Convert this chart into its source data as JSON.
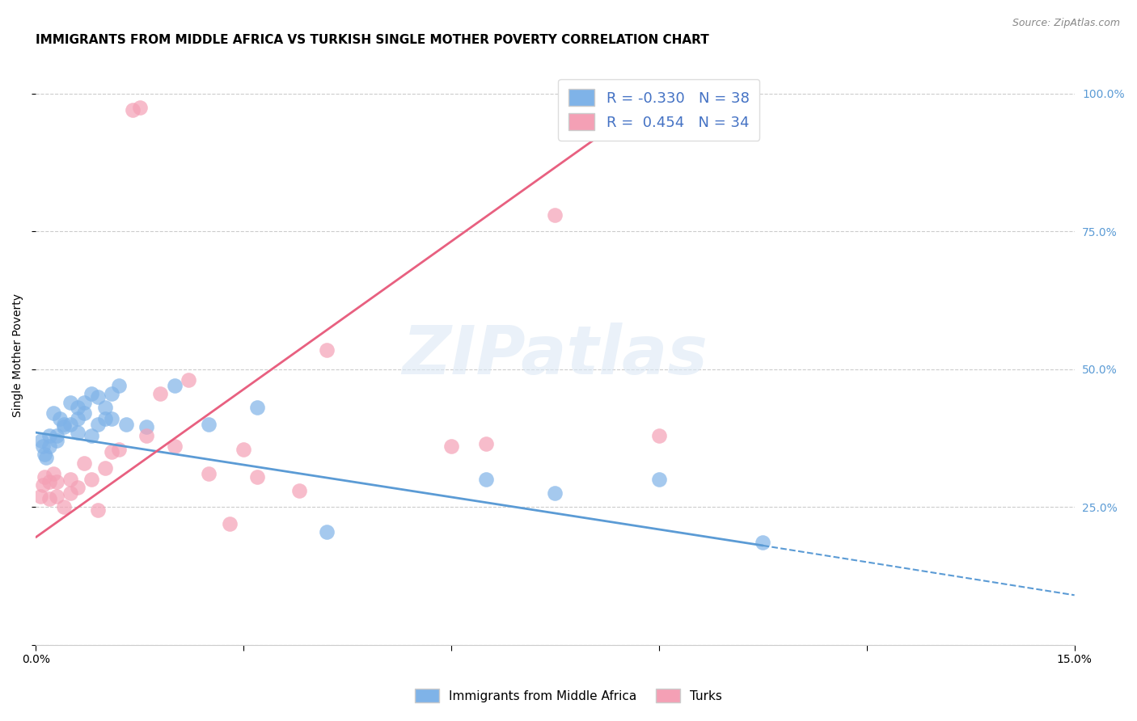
{
  "title": "IMMIGRANTS FROM MIDDLE AFRICA VS TURKISH SINGLE MOTHER POVERTY CORRELATION CHART",
  "source": "Source: ZipAtlas.com",
  "ylabel_label": "Single Mother Poverty",
  "xlim": [
    0.0,
    0.15
  ],
  "ylim": [
    0.0,
    1.05
  ],
  "xticks": [
    0.0,
    0.03,
    0.06,
    0.09,
    0.12,
    0.15
  ],
  "xtick_labels": [
    "0.0%",
    "",
    "",
    "",
    "",
    "15.0%"
  ],
  "ytick_labels_right": [
    "",
    "25.0%",
    "50.0%",
    "75.0%",
    "100.0%"
  ],
  "yticks_right": [
    0.0,
    0.25,
    0.5,
    0.75,
    1.0
  ],
  "grid_color": "#cccccc",
  "background_color": "#ffffff",
  "blue_color": "#7fb3e8",
  "pink_color": "#f4a0b5",
  "blue_line_color": "#5b9bd5",
  "pink_line_color": "#e86080",
  "blue_R": -0.33,
  "blue_N": 38,
  "pink_R": 0.454,
  "pink_N": 34,
  "blue_label": "Immigrants from Middle Africa",
  "pink_label": "Turks",
  "watermark": "ZIPatlas",
  "blue_line_x0": 0.0,
  "blue_line_y0": 0.385,
  "blue_line_x1": 0.105,
  "blue_line_y1": 0.18,
  "blue_line_dash_x1": 0.15,
  "blue_line_dash_y1": 0.09,
  "pink_line_x0": 0.0,
  "pink_line_y0": 0.195,
  "pink_line_x1": 0.09,
  "pink_line_y1": 1.0,
  "blue_scatter_x": [
    0.0008,
    0.001,
    0.0012,
    0.0015,
    0.002,
    0.002,
    0.0025,
    0.003,
    0.003,
    0.0035,
    0.004,
    0.004,
    0.005,
    0.005,
    0.006,
    0.006,
    0.006,
    0.007,
    0.007,
    0.008,
    0.008,
    0.009,
    0.009,
    0.01,
    0.01,
    0.011,
    0.011,
    0.012,
    0.013,
    0.016,
    0.02,
    0.025,
    0.032,
    0.042,
    0.065,
    0.075,
    0.09,
    0.105
  ],
  "blue_scatter_y": [
    0.37,
    0.36,
    0.345,
    0.34,
    0.38,
    0.36,
    0.42,
    0.38,
    0.37,
    0.41,
    0.4,
    0.395,
    0.44,
    0.4,
    0.43,
    0.41,
    0.385,
    0.44,
    0.42,
    0.455,
    0.38,
    0.45,
    0.4,
    0.43,
    0.41,
    0.455,
    0.41,
    0.47,
    0.4,
    0.395,
    0.47,
    0.4,
    0.43,
    0.205,
    0.3,
    0.275,
    0.3,
    0.185
  ],
  "pink_scatter_x": [
    0.0007,
    0.001,
    0.0012,
    0.002,
    0.002,
    0.0025,
    0.003,
    0.003,
    0.004,
    0.005,
    0.005,
    0.006,
    0.007,
    0.008,
    0.009,
    0.01,
    0.011,
    0.012,
    0.014,
    0.015,
    0.016,
    0.018,
    0.02,
    0.022,
    0.025,
    0.028,
    0.03,
    0.032,
    0.038,
    0.042,
    0.06,
    0.065,
    0.075,
    0.09
  ],
  "pink_scatter_y": [
    0.27,
    0.29,
    0.305,
    0.265,
    0.295,
    0.31,
    0.27,
    0.295,
    0.25,
    0.275,
    0.3,
    0.285,
    0.33,
    0.3,
    0.245,
    0.32,
    0.35,
    0.355,
    0.97,
    0.975,
    0.38,
    0.455,
    0.36,
    0.48,
    0.31,
    0.22,
    0.355,
    0.305,
    0.28,
    0.535,
    0.36,
    0.365,
    0.78,
    0.38
  ],
  "title_fontsize": 11,
  "axis_label_fontsize": 10,
  "tick_fontsize": 10,
  "legend_fontsize": 13
}
